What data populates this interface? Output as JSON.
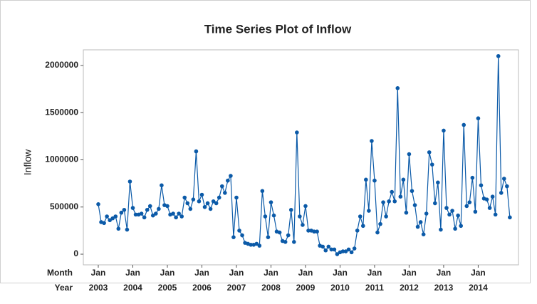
{
  "chart_data": {
    "type": "line",
    "title": "Time Series Plot of Inflow",
    "ylabel": "Inflow",
    "x_row_labels": {
      "month": "Month",
      "year": "Year"
    },
    "categories": [
      "Jan",
      null,
      null,
      null,
      null,
      null,
      null,
      null,
      null,
      null,
      null,
      null,
      "Jan",
      null,
      null,
      null,
      null,
      null,
      null,
      null,
      null,
      null,
      null,
      null,
      "Jan",
      null,
      null,
      null,
      null,
      null,
      null,
      null,
      null,
      null,
      null,
      null,
      "Jan",
      null,
      null,
      null,
      null,
      null,
      null,
      null,
      null,
      null,
      null,
      null,
      "Jan",
      null,
      null,
      null,
      null,
      null,
      null,
      null,
      null,
      null,
      null,
      null,
      "Jan",
      null,
      null,
      null,
      null,
      null,
      null,
      null,
      null,
      null,
      null,
      null,
      "Jan",
      null,
      null,
      null,
      null,
      null,
      null,
      null,
      null,
      null,
      null,
      null,
      "Jan",
      null,
      null,
      null,
      null,
      null,
      null,
      null,
      null,
      null,
      null,
      null,
      "Jan",
      null,
      null,
      null,
      null,
      null,
      null,
      null,
      null,
      null,
      null,
      null,
      "Jan",
      null,
      null,
      null,
      null,
      null,
      null,
      null,
      null,
      null,
      null,
      null,
      "Jan",
      null,
      null,
      null,
      null,
      null,
      null,
      null,
      null,
      null,
      null,
      null,
      "Jan",
      null,
      null,
      null,
      null,
      null,
      null,
      null,
      null,
      null,
      null,
      null
    ],
    "years": [
      "2003",
      "2004",
      "2005",
      "2006",
      "2007",
      "2008",
      "2009",
      "2010",
      "2011",
      "2012",
      "2013",
      "2014"
    ],
    "color": "#0b5aa8",
    "values": [
      530000,
      340000,
      330000,
      400000,
      360000,
      380000,
      400000,
      270000,
      440000,
      470000,
      260000,
      770000,
      490000,
      420000,
      420000,
      430000,
      390000,
      470000,
      510000,
      410000,
      430000,
      480000,
      730000,
      520000,
      510000,
      420000,
      430000,
      390000,
      430000,
      400000,
      600000,
      540000,
      480000,
      580000,
      1090000,
      560000,
      630000,
      500000,
      540000,
      480000,
      560000,
      540000,
      600000,
      720000,
      650000,
      780000,
      830000,
      180000,
      600000,
      250000,
      200000,
      120000,
      110000,
      100000,
      100000,
      110000,
      90000,
      670000,
      400000,
      180000,
      550000,
      410000,
      240000,
      230000,
      140000,
      130000,
      200000,
      470000,
      130000,
      1290000,
      400000,
      310000,
      510000,
      250000,
      250000,
      240000,
      240000,
      90000,
      80000,
      40000,
      80000,
      50000,
      50000,
      0,
      20000,
      30000,
      30000,
      50000,
      20000,
      60000,
      250000,
      400000,
      300000,
      790000,
      460000,
      1200000,
      780000,
      230000,
      320000,
      550000,
      400000,
      560000,
      660000,
      560000,
      1760000,
      610000,
      790000,
      440000,
      1060000,
      670000,
      520000,
      290000,
      340000,
      210000,
      430000,
      1080000,
      950000,
      540000,
      760000,
      260000,
      1310000,
      490000,
      420000,
      460000,
      270000,
      410000,
      300000,
      1370000,
      510000,
      550000,
      810000,
      450000,
      1440000,
      730000,
      590000,
      580000,
      490000,
      610000,
      420000,
      2100000,
      650000,
      800000,
      720000,
      390000
    ],
    "xlim": [
      -5.2,
      146
    ],
    "ylim": [
      -113000,
      2166000
    ],
    "yticks": [
      0,
      500000,
      1000000,
      1500000,
      2000000
    ]
  }
}
